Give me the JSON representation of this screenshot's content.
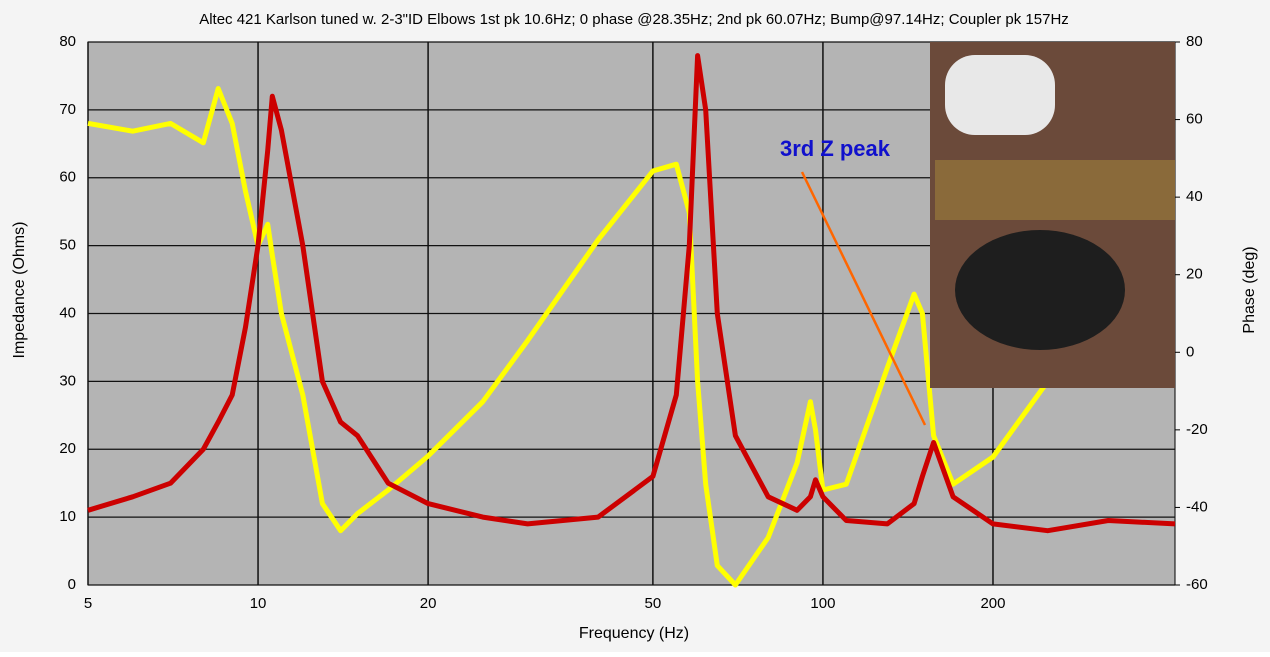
{
  "chart_data": {
    "type": "line",
    "title": "Altec 421  Karlson tuned w. 2-3\"ID Elbows 1st pk 10.6Hz; 0 phase @28.35Hz; 2nd pk 60.07Hz; Bump@97.14Hz; Coupler pk 157Hz",
    "x_label": "Frequency (Hz)",
    "y_label": "Impedance (Ohms)",
    "y2_label": "Phase (deg)",
    "annotation": "3rd Z peak",
    "x_scale": "log",
    "grid": true,
    "xlim": [
      5,
      420
    ],
    "xticks": [
      5,
      10,
      20,
      50,
      100,
      200
    ],
    "ylim": [
      0,
      80
    ],
    "yticks": [
      0,
      10,
      20,
      30,
      40,
      50,
      60,
      70,
      80
    ],
    "y2lim": [
      -60,
      80
    ],
    "y2ticks": [
      -60,
      -40,
      -20,
      0,
      20,
      40,
      60,
      80
    ],
    "x": [
      5,
      6,
      7,
      8,
      8.5,
      9,
      9.5,
      10,
      10.4,
      10.6,
      11,
      12,
      13,
      14,
      15,
      17,
      20,
      25,
      30,
      40,
      50,
      55,
      58,
      60,
      62,
      65,
      70,
      80,
      90,
      95,
      97,
      100,
      110,
      130,
      145,
      150,
      157,
      170,
      200,
      250,
      320,
      420
    ],
    "series": [
      {
        "color": "#cc0000",
        "values": [
          11,
          13,
          15,
          20,
          24,
          28,
          38,
          50,
          64,
          72,
          67,
          50,
          30,
          24,
          22,
          15,
          12,
          10,
          9,
          10,
          16,
          28,
          50,
          78,
          70,
          40,
          22,
          13,
          11,
          13,
          15.5,
          13,
          9.5,
          9,
          12,
          16,
          21,
          13,
          9,
          8,
          9.5,
          9
        ]
      },
      {
        "color": "#ffff00",
        "axis": "y2",
        "values": [
          59,
          57,
          59,
          54,
          68,
          59,
          41.5,
          27.5,
          33,
          25,
          10,
          -11,
          -39,
          -46,
          -41.6,
          -35.5,
          -26.75,
          -12.75,
          3,
          29,
          46.75,
          48.5,
          36,
          -7.5,
          -34,
          -55,
          -60,
          -47.75,
          -28.5,
          -12.75,
          -20,
          -35.5,
          -34,
          -4,
          15,
          10,
          -21.5,
          -34,
          -27,
          -7.5,
          null,
          null
        ]
      }
    ]
  }
}
